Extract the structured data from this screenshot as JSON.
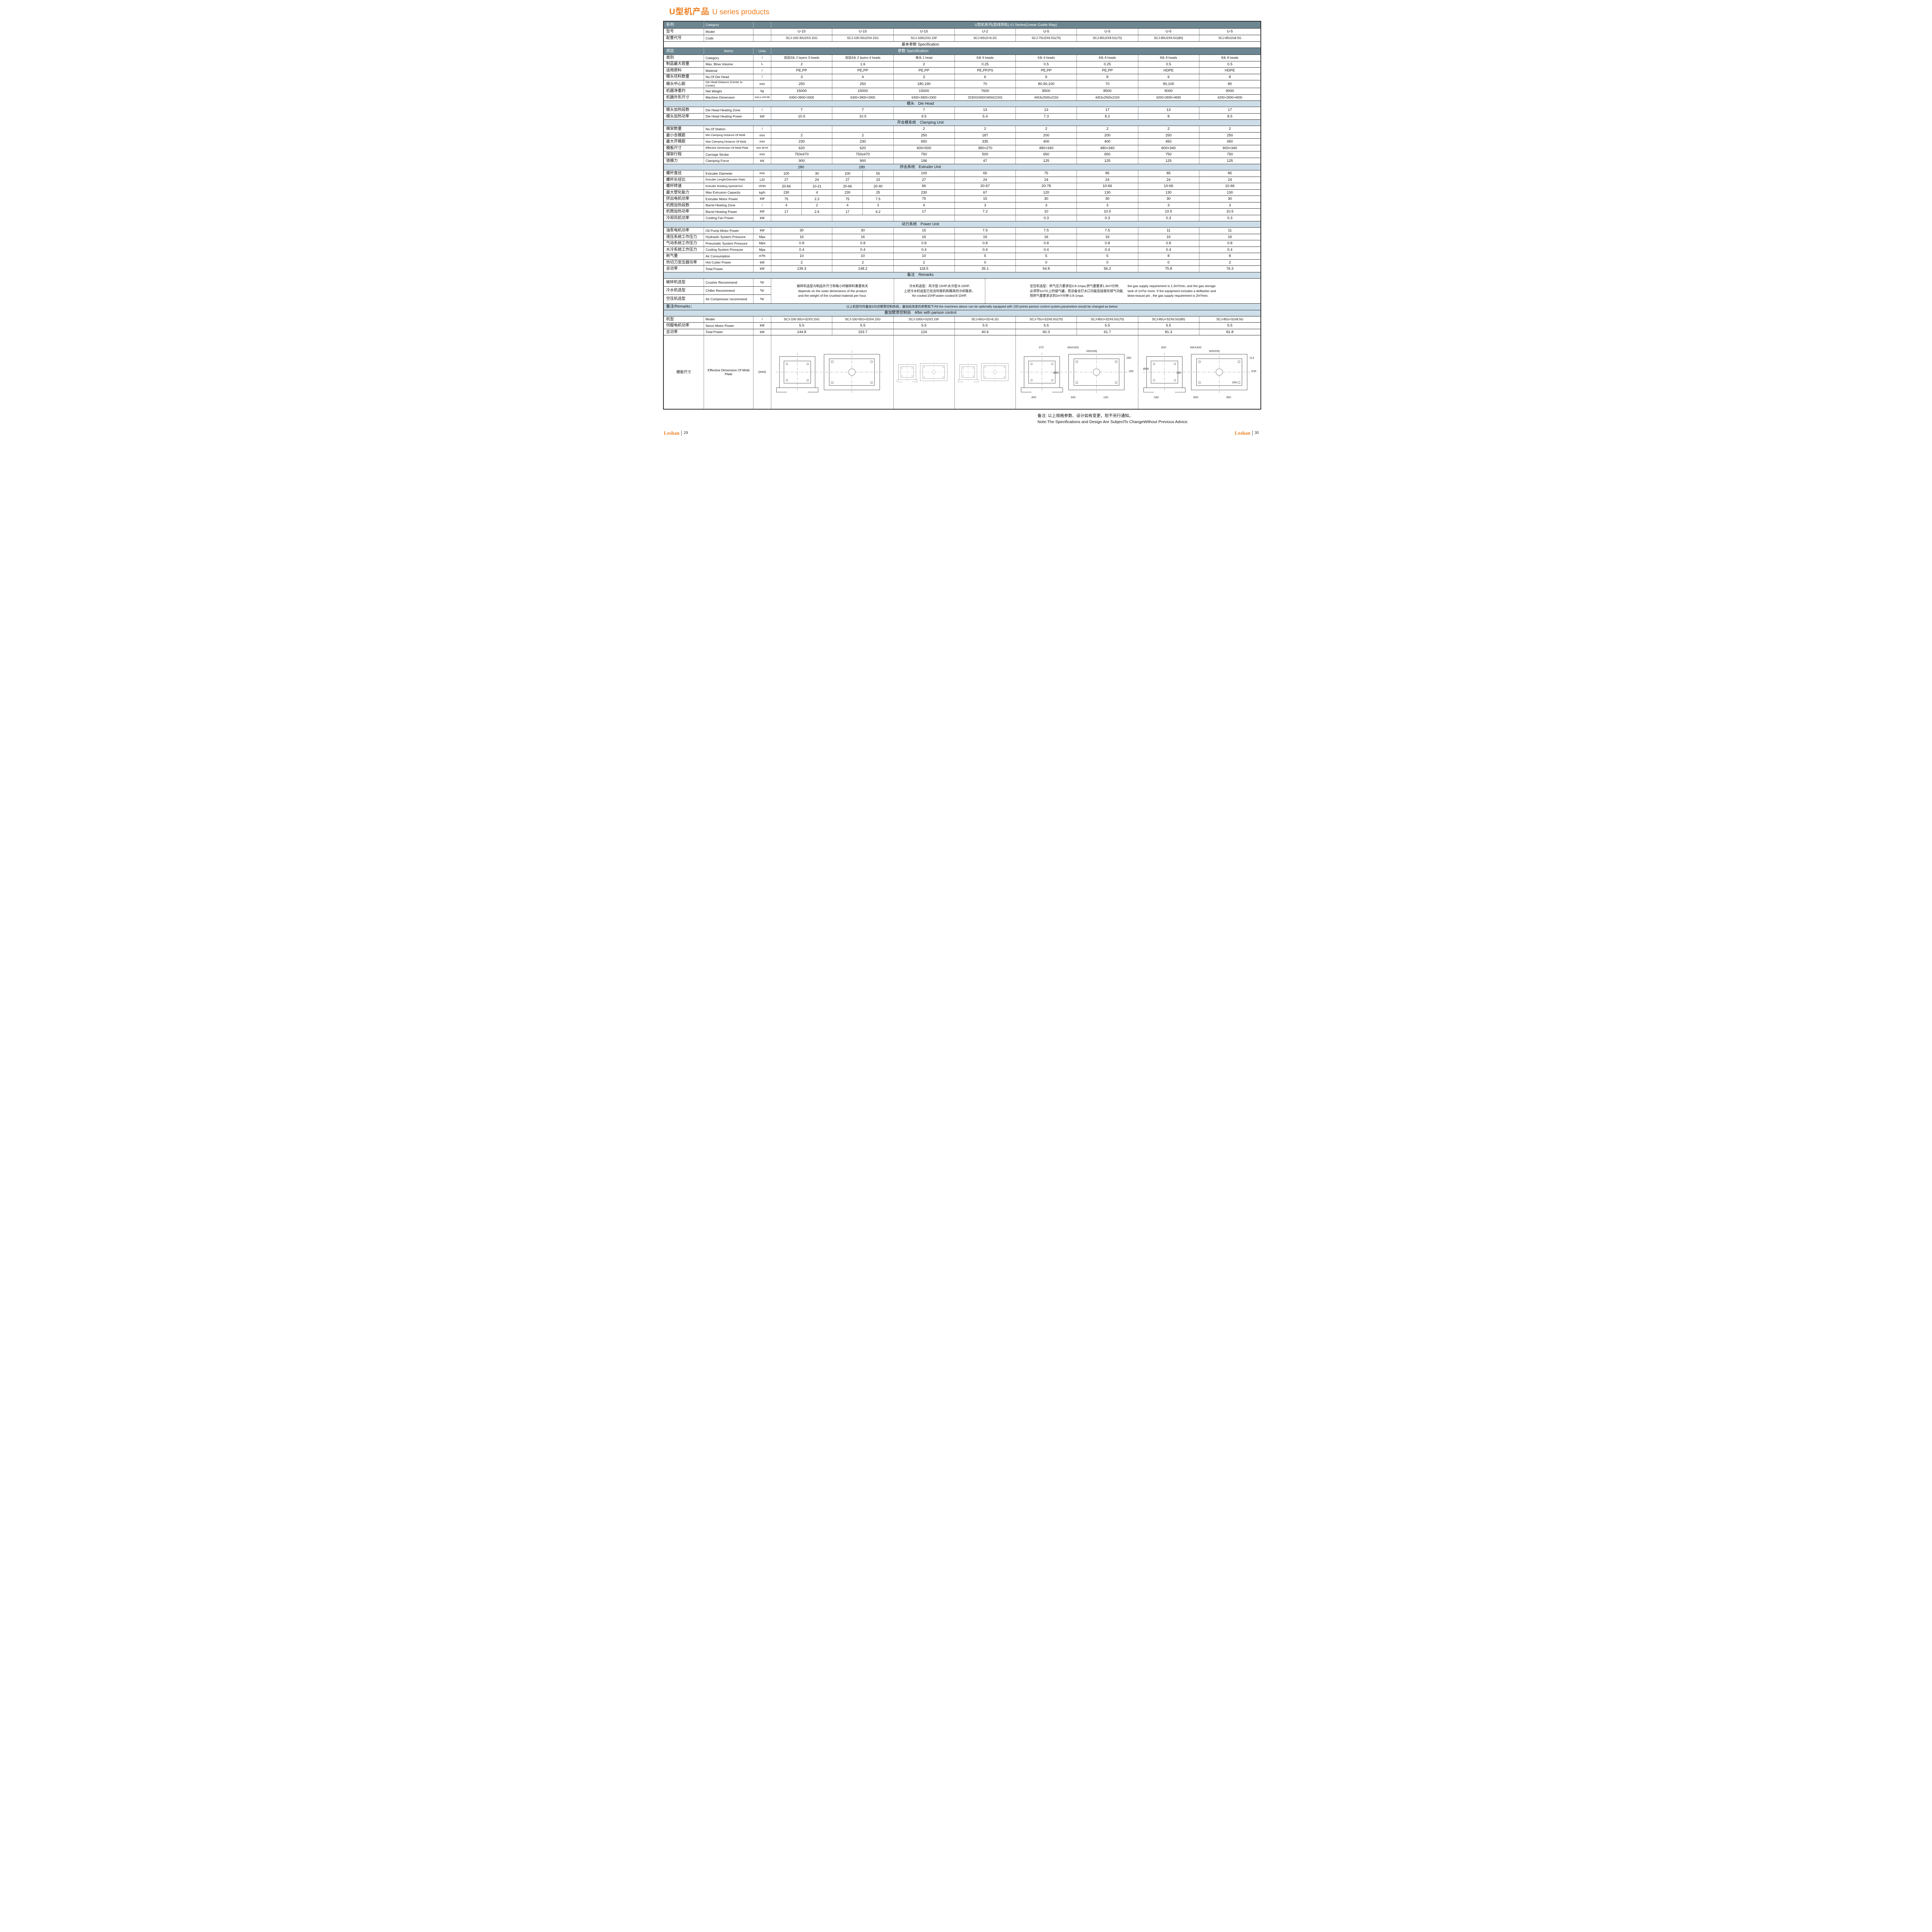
{
  "title": {
    "cn": "U型机产品",
    "en": "U series products"
  },
  "colors": {
    "accent_orange": "#ee7d1e",
    "header_dark": "#6d8792",
    "band_light": "#cddee9",
    "border_dark": "#2e2e2e"
  },
  "header": {
    "series": {
      "cn": "系列",
      "en": "Category",
      "value": "U型机系列(直线导轨)  /U Series(Linear Guide Way)"
    },
    "model": {
      "cn": "型号",
      "en": "Model",
      "values": [
        "U-15",
        "U-15",
        "U-15",
        "U-2",
        "U-5",
        "U-5",
        "U-5",
        "U-5"
      ]
    },
    "code": {
      "cn": "配置代号",
      "en": "Code",
      "values": [
        "SCJ-100-30U2X3.15G",
        "SCJ-100-55U2X4.15G",
        "SCJ-100U2X2.15F",
        "SCJ-65U2×6.2G",
        "SCJ-75U2X6.5G(70)",
        "SCJ-85U2X8.5G(70)",
        "SCJ-85U2X6.5G(80)",
        "SCJ-85U2x8.5G"
      ]
    },
    "spec_band": "基本参数   Specification",
    "items": {
      "cn": "项目",
      "en": "Items",
      "units": "Units",
      "value": "参数   Specification"
    }
  },
  "table_rows": [
    {
      "t": "r",
      "cn": "类别",
      "en": "Category",
      "u": "/",
      "v": [
        "双层3头 2 layers 3 heads",
        "双层4头 2 layers 4 heads",
        "单头 1 head",
        "6头 6 heads",
        "6头 6 heads",
        "8头 8 heads",
        "8头 8 heads",
        "8头 8 heads"
      ],
      "sv": true
    },
    {
      "t": "r",
      "cn": "制品最大容量",
      "en": "Max. Blow Volume",
      "u": "L",
      "v": [
        "2",
        "1.6",
        "2",
        "0.25",
        "0.5",
        "0.25",
        "0.5",
        "0.5"
      ]
    },
    {
      "t": "r",
      "cn": "适用原料",
      "en": "Material",
      "u": "/",
      "v": [
        "PE,PP",
        "PE,PP",
        "PE,PP",
        "PE,PP,PS",
        "PE,PP",
        "PE,PP",
        "HDPE",
        "HDPE"
      ]
    },
    {
      "t": "r",
      "cn": "模头坯料数量",
      "en": "No.Of Die Head",
      "u": "/",
      "v": [
        "3",
        "4",
        "3",
        "6",
        "6",
        "8",
        "6",
        "8"
      ]
    },
    {
      "t": "r",
      "cn": "模头中心距",
      "en": "Die Head Distance (Center to Center)",
      "u": "mm",
      "v": [
        "250",
        "250",
        "180,190",
        "70",
        "80,90,100",
        "70",
        "90,100",
        "80"
      ],
      "sen": true
    },
    {
      "t": "r",
      "cn": "机器净重约",
      "en": "Net Weight",
      "u": "kg",
      "v": [
        "15000",
        "15000",
        "15000",
        "7600",
        "8500",
        "8500",
        "9000",
        "9000"
      ]
    },
    {
      "t": "r",
      "cn": "机器外形尺寸",
      "en": "Machine Dimension",
      "u": "mm,L×H×W",
      "v": [
        "6300×3900×3300",
        "6300×3900×3300",
        "6300×3900×3300",
        "3230X2400X3450(2150)",
        "4453x2500x2150",
        "4453x2500x2150",
        "4200×2830×4930",
        "4200×2830×4930"
      ],
      "su": true,
      "sv": true
    },
    {
      "t": "band",
      "cn": "模头",
      "en": "Die Head"
    },
    {
      "t": "r",
      "cn": "模头加热段数",
      "en": "Die Head Heating Zone",
      "u": "/",
      "v": [
        "7",
        "7",
        "7",
        "13",
        "13",
        "17",
        "13",
        "17"
      ]
    },
    {
      "t": "r",
      "cn": "模头加热功率",
      "en": "Die Head Heating Power",
      "u": "kW",
      "v": [
        "10.5",
        "10.5",
        "9.5",
        "5.4",
        "7.3",
        "8.2",
        "8",
        "8.5"
      ]
    },
    {
      "t": "band",
      "cn": "开合模系统",
      "en": "Clamping Unit"
    },
    {
      "t": "r",
      "cn": "模架数量",
      "en": "No.Of Station",
      "u": "/",
      "v": [
        "",
        "",
        "2",
        "2",
        "2",
        "2",
        "2",
        "2"
      ]
    },
    {
      "t": "r",
      "cn": "最小合模距",
      "en": "Min Clamping Distance Of Mold",
      "u": "mm",
      "v": [
        "2",
        "2",
        "250",
        "187",
        "200",
        "200",
        "250",
        "250"
      ],
      "sen": true
    },
    {
      "t": "r",
      "cn": "最大开模距",
      "en": "Max Clamping Distance Of Mold",
      "u": "mm",
      "v": [
        "230",
        "230",
        "650",
        "335",
        "400",
        "400",
        "450",
        "450"
      ],
      "sen": true
    },
    {
      "t": "r",
      "cn": "模板尺寸",
      "en": "Effective Dimension Of Mold Plate",
      "u": "mm W×H",
      "v": [
        "620",
        "620",
        "600×500",
        "380×270",
        "480×340",
        "480×340",
        "600×340",
        "600×340"
      ],
      "sen": true,
      "su": true
    },
    {
      "t": "r",
      "cn": "摆架行程",
      "en": "Carriage  Stroke",
      "u": "mm",
      "v": [
        "750x470",
        "750x470",
        "750",
        "500",
        "650",
        "650",
        "750",
        "750"
      ]
    },
    {
      "t": "r",
      "cn": "锁模力",
      "en": "Clamping Force",
      "u": "kN",
      "v": [
        "900",
        "900",
        "196",
        "47",
        "125",
        "125",
        "125",
        "125"
      ]
    },
    {
      "t": "band",
      "cn": "挤出系统",
      "en": "Extruder Unit",
      "over": [
        "280",
        "280"
      ]
    },
    {
      "t": "r",
      "cn": "螺杆直径",
      "en": "Extruder Diameter",
      "u": "mm",
      "v": [
        [
          "100",
          "30"
        ],
        [
          "100",
          "55"
        ],
        "100",
        "65",
        "75",
        "85",
        "85",
        "85"
      ]
    },
    {
      "t": "r",
      "cn": "螺杆长径比",
      "en": "Extruder Length/Diameter Ratio",
      "u": "L/D",
      "v": [
        [
          "27",
          "24"
        ],
        [
          "27",
          "23"
        ],
        "27",
        "24",
        "24",
        "24",
        "24",
        "24"
      ],
      "sen": true
    },
    {
      "t": "r",
      "cn": "螺杆转速",
      "en": "Extruder Rotating Speedr/min",
      "u": "r/min",
      "v": [
        [
          "20-66",
          "10-21"
        ],
        [
          "20-66",
          "20-40"
        ],
        "66",
        "20-67",
        "20-78",
        "10-66",
        "10-66",
        "10-66"
      ],
      "sen": true
    },
    {
      "t": "r",
      "cn": "最大塑化能力",
      "en": "Max Extrusion Capacity",
      "u": "kg/h",
      "v": [
        [
          "230",
          "4"
        ],
        [
          "230",
          "25"
        ],
        "230",
        "67",
        "120",
        "130",
        "130",
        "130"
      ]
    },
    {
      "t": "r",
      "cn": "挤出电机功率",
      "en": "Extruder Motor Power",
      "u": "kW",
      "v": [
        [
          "75",
          "2.2"
        ],
        [
          "75",
          "7.5"
        ],
        "75",
        "15",
        "30",
        "30",
        "30",
        "30"
      ]
    },
    {
      "t": "r",
      "cn": "机筒加热段数",
      "en": "Barrel Heating Zone",
      "u": "/",
      "v": [
        [
          "4",
          "2"
        ],
        [
          "4",
          "3"
        ],
        "4",
        "3",
        "3",
        "3",
        "3",
        "3"
      ]
    },
    {
      "t": "r",
      "cn": "机筒加热功率",
      "en": "Barrel Heating Power",
      "u": "kW",
      "v": [
        [
          "17",
          "2.6"
        ],
        [
          "17",
          "6.2"
        ],
        "17",
        "7.2",
        "10",
        "10.5",
        "10.5",
        "10.5"
      ]
    },
    {
      "t": "r",
      "cn": "冷却风机功率",
      "en": "Cooling Fan Power",
      "u": "kW",
      "v": [
        "",
        "",
        "",
        "",
        "0.3",
        "0.3",
        "0.3",
        "0.3"
      ]
    },
    {
      "t": "band",
      "cn": "动力系统",
      "en": "Power Unit"
    },
    {
      "t": "r",
      "cn": "油泵电机功率",
      "en": "Oil Pump Motor Power",
      "u": "kW",
      "v": [
        "30",
        "30",
        "15",
        "7.5",
        "7.5",
        "7.5",
        "11",
        "11"
      ]
    },
    {
      "t": "r",
      "cn": "液压系统工作压力",
      "en": "Hydraulic System Pressure",
      "u": "Mpa",
      "v": [
        "16",
        "16",
        "16",
        "16",
        "16",
        "16",
        "16",
        "16"
      ]
    },
    {
      "t": "r",
      "cn": "气动系统工作压力",
      "en": "Pneumatic System Pressure",
      "u": "Mpa",
      "v": [
        "0.8",
        "0.8",
        "0.8",
        "0.8",
        "0.8",
        "0.8",
        "0.8",
        "0.8"
      ]
    },
    {
      "t": "r",
      "cn": "水冷系统工作压力",
      "en": "Cooling System Pressure",
      "u": "Mpa",
      "v": [
        "0.4",
        "0.4",
        "0.4",
        "0.4",
        "0.4",
        "0.4",
        "0.4",
        "0.4"
      ]
    },
    {
      "t": "r",
      "cn": "耗气量",
      "en": "Air Consumption",
      "u": "m³/h",
      "v": [
        "10",
        "10",
        "10",
        "5",
        "5",
        "5",
        "8",
        "8"
      ]
    },
    {
      "t": "r",
      "cn": "热切刀变压器功率",
      "en": "Hot Cutter Power",
      "u": "kW",
      "v": [
        "2",
        "2",
        "2",
        "0",
        "0",
        "0",
        "0",
        "2"
      ]
    },
    {
      "t": "r",
      "cn": "总功率",
      "en": "Total Power",
      "u": "kW",
      "v": [
        "139.3",
        "148.2",
        "118.5",
        "35.1",
        "54.8",
        "56.2",
        "75.8",
        "76.3"
      ]
    },
    {
      "t": "band",
      "cn": "备注",
      "en": "Remarks"
    },
    {
      "t": "remarks",
      "left": [
        {
          "cn": "破碎机选型",
          "en": "Crusher Recommend",
          "u": "hp"
        },
        {
          "cn": "冷水机选型",
          "en": "Chiller Recommend",
          "u": "hp"
        },
        {
          "cn": "空压机选型",
          "en": "Air Compressor recommend",
          "u": "hp"
        }
      ],
      "block1": [
        "破碎机选型与制品外尺寸和每小时破碎料重量有关",
        "depends on the  outer dimensions of the product",
        "and the weight of the crushed material per hour."
      ],
      "block2": [
        "冷水机选型：风冷型:15HP,水冷型:8-10HP,",
        "上述冷水机选型已包含吹瓶机和模具的冷却需求。",
        "Air-cooled:15HP,water-cooled:8-10HP,"
      ],
      "block3_cn": [
        "空压机选型：供气压力要求在0.8-1mpa,供气量要求1.3m³/分钟,",
        "必须带1m³以上的储气罐。若设备含打水口功能及插笔吹排气功能,",
        "则供气量要求达到2m³/分钟.0.8-1mpa"
      ],
      "block3_en": [
        "the gas supply requirement is 1.3m³/min, and the gas storage",
        "tank of 1m³or more. If the equipment includes a deflasher and",
        "blow-exaust pin , the gas supply requirement is 2m³/min."
      ]
    },
    {
      "t": "fullband",
      "label": "备注/Remarks：",
      "text": "以上机型均可叠加100点壁厚控制系统，叠加后改变的参数如下/All the machines above can be optionally equipped with 100 points parison control system,parameters would be changed as below:"
    },
    {
      "t": "band",
      "cn": "叠加壁厚控制后",
      "en": "After with parison control"
    },
    {
      "t": "r",
      "cn": "机型",
      "en": "Model",
      "u": "/",
      "v": [
        "SCJ-100-30U+S2X3.15G",
        "SCJ-100-55U+S2X4.15G",
        "SCJ-100U+S2X3.15F",
        "SCJ-65U+S2×6.2G",
        "SCJ-75U+S2X6.5G(70)",
        "SCJ-85U+S2X6.5G(70)",
        "SCJ-85U+S2X6.5G(80)",
        "SCJ-85U+S2x8.5G"
      ],
      "sv": true
    },
    {
      "t": "r",
      "cn": "伺服电机功率",
      "en": "Servo Motor Power",
      "u": "kW",
      "v": [
        "5.5",
        "5.5",
        "5.5",
        "5.5",
        "5.5",
        "5.5",
        "5.5",
        "5.5"
      ]
    },
    {
      "t": "r",
      "cn": "总功率",
      "en": "Total Power",
      "u": "kW",
      "v": [
        "144.8",
        "153.7",
        "124",
        "40.6",
        "60.3",
        "61.7",
        "81.3",
        "81.8"
      ]
    },
    {
      "t": "drawing",
      "cn": "模板尺寸",
      "en": "Effective Dimension Of Mold Plate",
      "u": "(mm)",
      "groups": [
        {
          "span": 4,
          "labels": []
        },
        {
          "span": 2,
          "labels": []
        },
        {
          "span": 2,
          "labels": []
        },
        {
          "span": 4,
          "labels": [
            "MAX400",
            "MIN260",
            "375",
            "180",
            "340",
            "400",
            "160",
            "280",
            "Ø60"
          ]
        },
        {
          "span": 4,
          "labels": [
            "MAX450",
            "MIN250",
            "600",
            "635",
            "660",
            "340",
            "360",
            "113",
            "160",
            "280",
            "Ø58"
          ]
        }
      ]
    }
  ],
  "footer": {
    "note_cn": "备注: 以上规格参数、设计如有变更，恕不另行通知。",
    "note_en": "Note:The Specifications and Design Are SubjectTo ChangeWithout Previous Advice.",
    "left_brand": "Leshan",
    "left_page": "29",
    "right_brand": "Leshan",
    "right_page": "30"
  }
}
